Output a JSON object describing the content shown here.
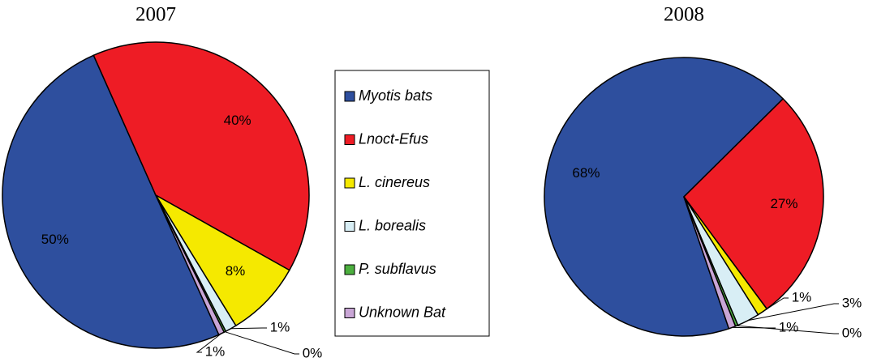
{
  "chart_data": [
    {
      "type": "pie",
      "title": "2007",
      "categories": [
        "Myotis bats",
        "Lnoct-Efus",
        "L. cinereus",
        "L. borealis",
        "P. subflavus",
        "Unknown Bat"
      ],
      "values": [
        50.1,
        39.8,
        8.1,
        1.2,
        0.2,
        0.6
      ],
      "value_labels": [
        "50%",
        "40%",
        "8%",
        "1%",
        "0%",
        "1%"
      ],
      "colors": [
        "#2e4f9e",
        "#ee1c25",
        "#f5e900",
        "#d8eef5",
        "#4caf3f",
        "#c9a6d6"
      ]
    },
    {
      "type": "pie",
      "title": "2008",
      "categories": [
        "Myotis bats",
        "Lnoct-Efus",
        "L. cinereus",
        "L. borealis",
        "P. subflavus",
        "Unknown Bat"
      ],
      "values": [
        67.8,
        27.3,
        1.2,
        2.6,
        0.3,
        0.8
      ],
      "value_labels": [
        "68%",
        "27%",
        "1%",
        "3%",
        "0%",
        "1%"
      ],
      "colors": [
        "#2e4f9e",
        "#ee1c25",
        "#f5e900",
        "#d8eef5",
        "#4caf3f",
        "#c9a6d6"
      ]
    }
  ]
}
